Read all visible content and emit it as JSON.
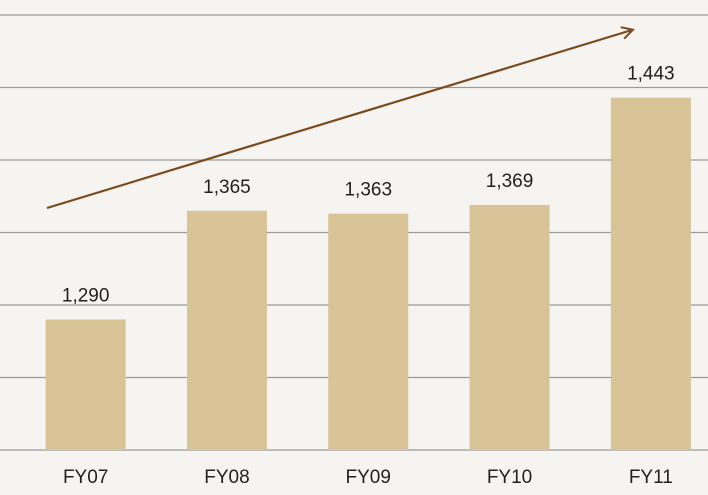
{
  "chart_data": {
    "type": "bar",
    "categories": [
      "FY07",
      "FY08",
      "FY09",
      "FY10",
      "FY11"
    ],
    "values": [
      1290,
      1365,
      1363,
      1369,
      1443
    ],
    "value_labels": [
      "1,290",
      "1,365",
      "1,363",
      "1,369",
      "1,443"
    ],
    "color": "#d8c497",
    "ylim": [
      1200,
      1500
    ],
    "yticks": [
      1200,
      1250,
      1300,
      1350,
      1400,
      1450,
      1500
    ],
    "grid": true
  }
}
